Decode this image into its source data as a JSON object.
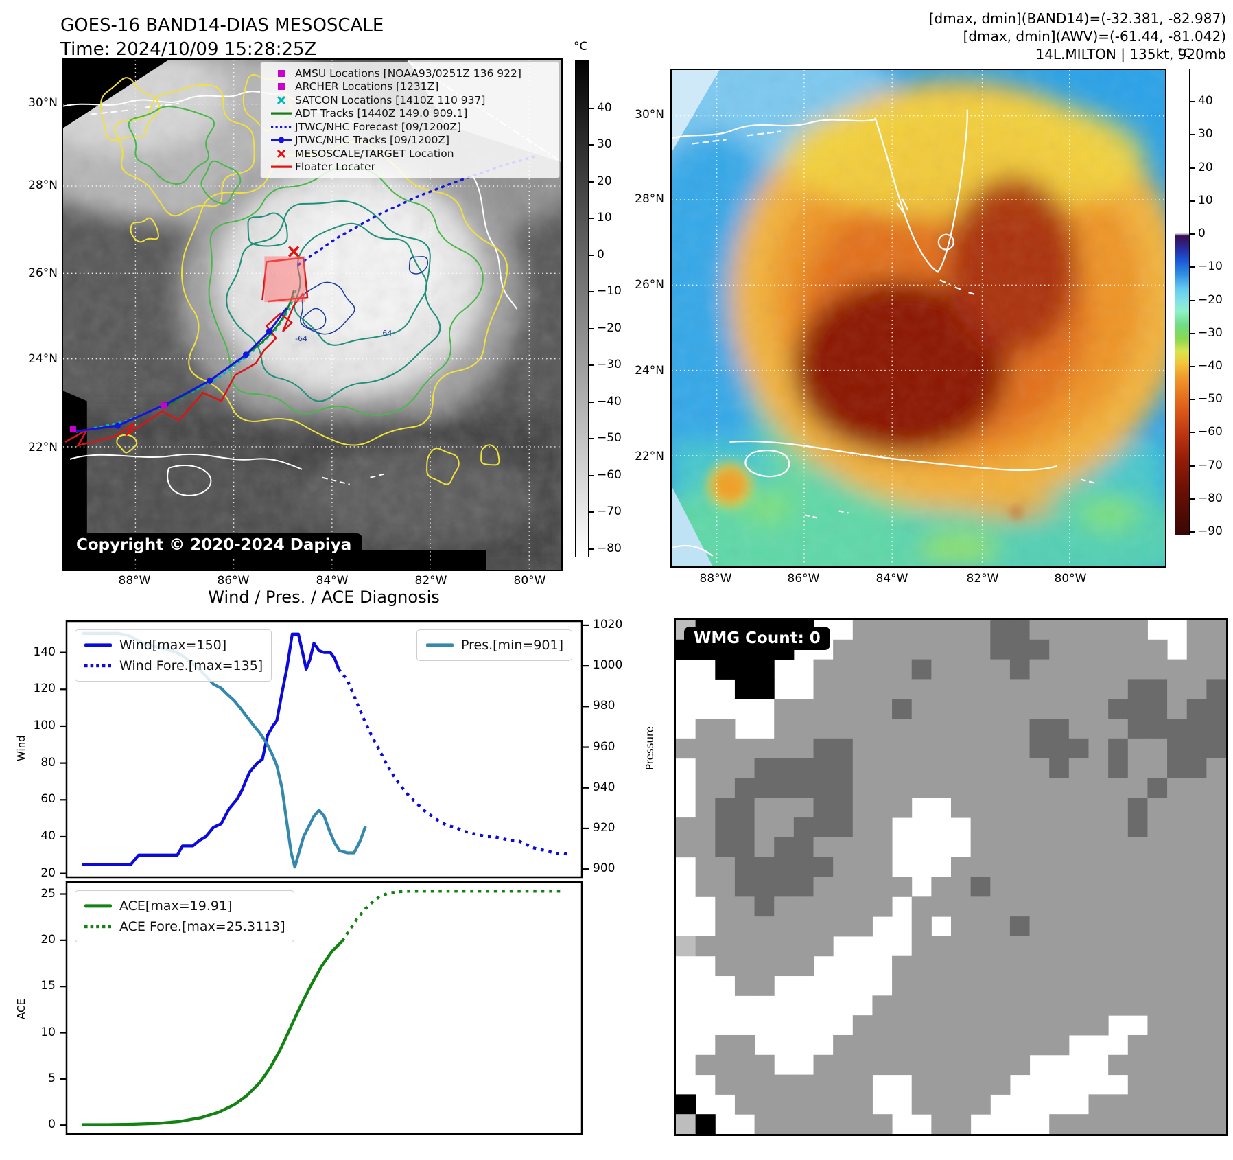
{
  "header": {
    "title_line1": "GOES-16 BAND14-DIAS MESOSCALE",
    "title_line2": "Time: 2024/10/09 15:28:25Z",
    "right_line1": "[dmax, dmin](BAND14)=(-32.381, -82.987)",
    "right_line2": "[dmax, dmin](AWV)=(-61.44, -81.042)",
    "right_line3": "14L.MILTON | 135kt, 920mb"
  },
  "colors": {
    "wind": "#0a0adb",
    "pressure": "#3488ae",
    "ace": "#128212",
    "magenta": "#cc00cc",
    "cyan": "#00b8b8",
    "green_track": "#1a7a1a",
    "blue_track": "#1414e0",
    "red": "#e01212"
  },
  "left_map": {
    "copyright": "Copyright © 2020-2024 Dapiya",
    "contour_label_a": "64",
    "contour_label_b": "-64",
    "lat_labels": [
      "30°N",
      "28°N",
      "26°N",
      "24°N",
      "22°N"
    ],
    "lon_labels": [
      "88°W",
      "86°W",
      "84°W",
      "82°W",
      "80°W"
    ],
    "colorbar": {
      "unit": "°C",
      "ticks": [
        40,
        30,
        20,
        10,
        0,
        -10,
        -20,
        -30,
        -40,
        -50,
        -60,
        -70,
        -80
      ]
    },
    "legend": [
      {
        "marker": "square",
        "color": "#cc00cc",
        "label": "AMSU Locations [NOAA93/0251Z 136 922]"
      },
      {
        "marker": "square",
        "color": "#cc00cc",
        "label": "ARCHER Locations [1231Z]"
      },
      {
        "marker": "x",
        "color": "#00b8b8",
        "label": "SATCON Locations [1410Z 110 937]"
      },
      {
        "marker": "line",
        "color": "#1a7a1a",
        "label": "ADT Tracks [1440Z 149.0 909.1]"
      },
      {
        "marker": "dotted",
        "color": "#1414e0",
        "label": "JTWC/NHC Forecast [09/1200Z]"
      },
      {
        "marker": "line-dot",
        "color": "#1414e0",
        "label": "JTWC/NHC Tracks [09/1200Z]"
      },
      {
        "marker": "x",
        "color": "#e01212",
        "label": "MESOSCALE/TARGET Location"
      },
      {
        "marker": "line",
        "color": "#e01212",
        "label": "Floater Locater"
      }
    ]
  },
  "right_map": {
    "lat_labels": [
      "30°N",
      "28°N",
      "26°N",
      "24°N",
      "22°N"
    ],
    "lon_labels": [
      "88°W",
      "86°W",
      "84°W",
      "82°W",
      "80°W"
    ],
    "colorbar": {
      "unit": "°C",
      "ticks": [
        40,
        30,
        20,
        10,
        0,
        -10,
        -20,
        -30,
        -40,
        -50,
        -60,
        -70,
        -80,
        -90
      ]
    }
  },
  "charts_title": "Wind / Pres. / ACE Diagnosis",
  "chart_data": [
    {
      "type": "line",
      "title": "Wind / Pres. / ACE Diagnosis",
      "ylabel": "Wind",
      "ylabel_right": "Pressure",
      "yticks_left": [
        140,
        120,
        100,
        80,
        60,
        40,
        20
      ],
      "ylim_left": [
        18,
        157
      ],
      "yticks_right": [
        1020,
        1000,
        980,
        960,
        940,
        920,
        900
      ],
      "ylim_right": [
        896,
        1022
      ],
      "xlim": [
        0,
        1
      ],
      "legend_left": [
        "Wind[max=150]",
        "Wind Fore.[max=135]"
      ],
      "legend_right": [
        "Pres.[min=901]"
      ],
      "series": [
        {
          "name": "Wind[max=150]",
          "style": "solid",
          "color": "#0a0adb",
          "axis": "left",
          "points": [
            [
              0.03,
              25
            ],
            [
              0.075,
              25
            ],
            [
              0.11,
              25
            ],
            [
              0.125,
              25
            ],
            [
              0.14,
              30
            ],
            [
              0.17,
              30
            ],
            [
              0.2,
              30
            ],
            [
              0.215,
              30
            ],
            [
              0.225,
              35
            ],
            [
              0.245,
              35
            ],
            [
              0.258,
              38
            ],
            [
              0.27,
              40
            ],
            [
              0.285,
              45
            ],
            [
              0.3,
              47
            ],
            [
              0.315,
              55
            ],
            [
              0.33,
              60
            ],
            [
              0.34,
              65
            ],
            [
              0.355,
              75
            ],
            [
              0.37,
              80
            ],
            [
              0.38,
              82
            ],
            [
              0.39,
              95
            ],
            [
              0.4,
              100
            ],
            [
              0.408,
              103
            ],
            [
              0.418,
              118
            ],
            [
              0.428,
              132
            ],
            [
              0.438,
              150
            ],
            [
              0.45,
              150
            ],
            [
              0.458,
              140
            ],
            [
              0.465,
              131
            ],
            [
              0.472,
              136
            ],
            [
              0.48,
              145
            ],
            [
              0.49,
              141
            ],
            [
              0.5,
              140
            ],
            [
              0.512,
              140
            ],
            [
              0.52,
              137
            ],
            [
              0.528,
              131
            ]
          ]
        },
        {
          "name": "Wind Fore.[max=135]",
          "style": "dotted",
          "color": "#0a0adb",
          "axis": "left",
          "points": [
            [
              0.528,
              131
            ],
            [
              0.545,
              125
            ],
            [
              0.56,
              115
            ],
            [
              0.575,
              105
            ],
            [
              0.59,
              96
            ],
            [
              0.605,
              88
            ],
            [
              0.62,
              80
            ],
            [
              0.635,
              73
            ],
            [
              0.65,
              67
            ],
            [
              0.665,
              62
            ],
            [
              0.68,
              58
            ],
            [
              0.695,
              54
            ],
            [
              0.71,
              51
            ],
            [
              0.725,
              48
            ],
            [
              0.74,
              46
            ],
            [
              0.755,
              45
            ],
            [
              0.77,
              43
            ],
            [
              0.785,
              42
            ],
            [
              0.8,
              41
            ],
            [
              0.815,
              40
            ],
            [
              0.83,
              40
            ],
            [
              0.845,
              39
            ],
            [
              0.86,
              38
            ],
            [
              0.875,
              38
            ],
            [
              0.89,
              36
            ],
            [
              0.905,
              34
            ],
            [
              0.92,
              33
            ],
            [
              0.935,
              32
            ],
            [
              0.95,
              31
            ],
            [
              0.965,
              31
            ],
            [
              0.98,
              30
            ]
          ]
        },
        {
          "name": "Pres.[min=901]",
          "style": "solid",
          "color": "#3488ae",
          "axis": "right",
          "points": [
            [
              0.03,
              1016
            ],
            [
              0.07,
              1016
            ],
            [
              0.1,
              1016
            ],
            [
              0.12,
              1015
            ],
            [
              0.135,
              1013
            ],
            [
              0.15,
              1011
            ],
            [
              0.165,
              1010
            ],
            [
              0.18,
              1009
            ],
            [
              0.195,
              1008
            ],
            [
              0.21,
              1007
            ],
            [
              0.225,
              1005
            ],
            [
              0.24,
              1002
            ],
            [
              0.255,
              999
            ],
            [
              0.27,
              995
            ],
            [
              0.285,
              991
            ],
            [
              0.3,
              989
            ],
            [
              0.312,
              986
            ],
            [
              0.325,
              983
            ],
            [
              0.338,
              979
            ],
            [
              0.35,
              975
            ],
            [
              0.362,
              971
            ],
            [
              0.375,
              967
            ],
            [
              0.388,
              962
            ],
            [
              0.398,
              957
            ],
            [
              0.408,
              951
            ],
            [
              0.418,
              940
            ],
            [
              0.428,
              922
            ],
            [
              0.436,
              908
            ],
            [
              0.443,
              901
            ],
            [
              0.452,
              909
            ],
            [
              0.46,
              916
            ],
            [
              0.47,
              921
            ],
            [
              0.48,
              926
            ],
            [
              0.49,
              929
            ],
            [
              0.5,
              926
            ],
            [
              0.51,
              919
            ],
            [
              0.52,
              913
            ],
            [
              0.53,
              909
            ],
            [
              0.545,
              908
            ],
            [
              0.558,
              908
            ],
            [
              0.57,
              914
            ],
            [
              0.58,
              921
            ]
          ]
        }
      ]
    },
    {
      "type": "line",
      "ylabel": "ACE",
      "yticks_left": [
        25,
        20,
        15,
        10,
        5,
        0
      ],
      "ylim_left": [
        -0.95,
        26.3
      ],
      "xlim": [
        0,
        1
      ],
      "legend_left": [
        "ACE[max=19.91]",
        "ACE Fore.[max=25.3113]"
      ],
      "series": [
        {
          "name": "ACE[max=19.91]",
          "style": "solid",
          "color": "#128212",
          "axis": "left",
          "points": [
            [
              0.03,
              0.05
            ],
            [
              0.08,
              0.05
            ],
            [
              0.13,
              0.1
            ],
            [
              0.18,
              0.2
            ],
            [
              0.22,
              0.4
            ],
            [
              0.26,
              0.8
            ],
            [
              0.295,
              1.4
            ],
            [
              0.325,
              2.2
            ],
            [
              0.35,
              3.2
            ],
            [
              0.375,
              4.6
            ],
            [
              0.395,
              6.2
            ],
            [
              0.415,
              8.2
            ],
            [
              0.435,
              10.6
            ],
            [
              0.455,
              13.0
            ],
            [
              0.475,
              15.2
            ],
            [
              0.495,
              17.2
            ],
            [
              0.515,
              18.8
            ],
            [
              0.535,
              19.91
            ]
          ]
        },
        {
          "name": "ACE Fore.[max=25.3113]",
          "style": "dotted",
          "color": "#128212",
          "axis": "left",
          "points": [
            [
              0.535,
              19.91
            ],
            [
              0.55,
              21.2
            ],
            [
              0.565,
              22.4
            ],
            [
              0.58,
              23.4
            ],
            [
              0.595,
              24.2
            ],
            [
              0.61,
              24.8
            ],
            [
              0.625,
              25.1
            ],
            [
              0.645,
              25.25
            ],
            [
              0.665,
              25.31
            ],
            [
              0.7,
              25.31
            ],
            [
              0.74,
              25.31
            ],
            [
              0.78,
              25.31
            ],
            [
              0.82,
              25.31
            ],
            [
              0.86,
              25.31
            ],
            [
              0.9,
              25.31
            ],
            [
              0.935,
              25.31
            ],
            [
              0.965,
              25.31
            ]
          ]
        }
      ]
    }
  ],
  "wmg": {
    "label": "WMG Count: 0",
    "palette": {
      ".": "#ffffff",
      "g": "#9c9c9c",
      "d": "#6b6b6b",
      "k": "#000000",
      "l": "#bdbdbd"
    },
    "grid": [
      "lkkkkkk..gggggggddgggggg..gg",
      "kkkkkk..ggggggggdddgggggg.gg",
      "..kkk..gggggdggggdgggggggggg",
      "...kk..ggggggggggggggggddggd",
      ".....ggggggdggggggggggdddgdd",
      ".gg..gggggggggggggddgggddddd",
      "gggggggddgggggggggdddgdggddd",
      ".gggdddddggggggggggdggdggddg",
      ".ggddddddgggggggggggggggdggg",
      ".gddgggddggg..gggggggggdgggg",
      "ggddggdddgg....ggggggggdgggg",
      "ggddgddgggg....ggggggggggggg",
      ".ggdddddggg...gggggggggggggg",
      ".ggddddggggg.ggdgggggggggggg",
      "..ggdgggggg.gggggggggggggggg",
      "..gggggggg..g.gggdgggggggggg",
      "lggggggg....gggggggggggggggg",
      "..ggggg....ggggggggggggggggg",
      "...gg......ggggggggggggggggg",
      "..........gggggggggggggggggg",
      ".........ggggggggggggg..gggg",
      "..gg....gggggggggggg...ggggg",
      ".gggg..ggggggggggg....gggggg",
      "..gggggggg..ggggg......ggggg",
      "k..ggggggg..gggg.....ggggggg",
      "lk..ggggggg..gg....ggggggggg"
    ]
  }
}
